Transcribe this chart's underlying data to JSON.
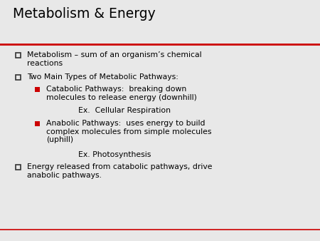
{
  "title": "Metabolism & Energy",
  "background_color": "#e8e8e8",
  "title_color": "#000000",
  "title_fontsize": 13.5,
  "line_color": "#cc0000",
  "hollow_square_color": "#333333",
  "red_square_color": "#cc0000",
  "font_family": "DejaVu Sans",
  "body_fontsize": 7.8,
  "items": [
    {
      "level": 1,
      "text": "Metabolism – sum of an organism’s chemical\nreactions"
    },
    {
      "level": 1,
      "text": "Two Main Types of Metabolic Pathways:"
    },
    {
      "level": 2,
      "text": "Catabolic Pathways:  breaking down\nmolecules to release energy (downhill)"
    },
    {
      "level": 3,
      "text": "Ex.  Cellular Respiration"
    },
    {
      "level": 2,
      "text": "Anabolic Pathways:  uses energy to build\ncomplex molecules from simple molecules\n(uphill)"
    },
    {
      "level": 3,
      "text": "Ex. Photosynthesis"
    },
    {
      "level": 1,
      "text": "Energy released from catabolic pathways, drive\nanabolic pathways."
    }
  ]
}
